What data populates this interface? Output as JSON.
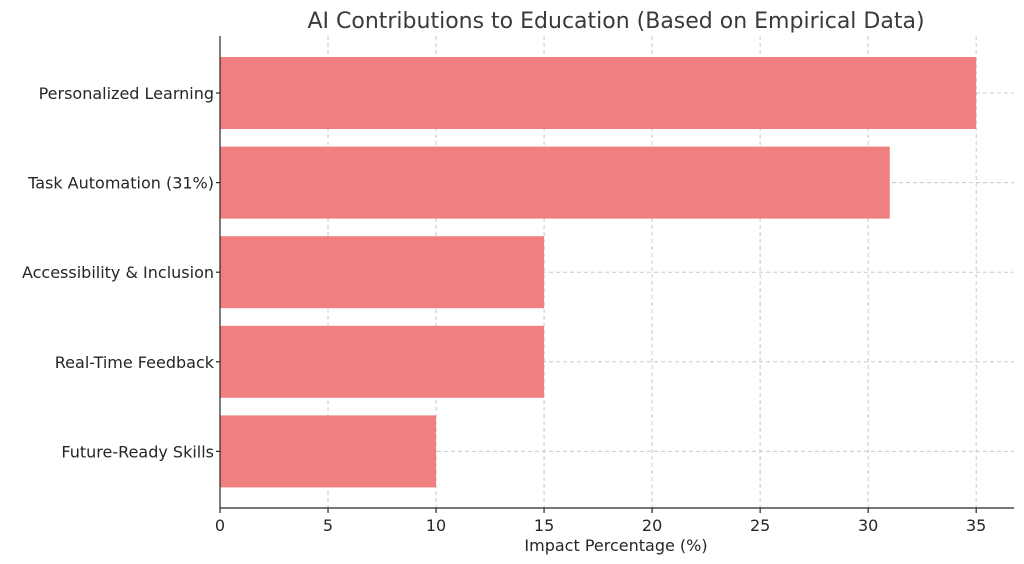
{
  "chart_data": {
    "type": "bar",
    "orientation": "horizontal",
    "title": "AI Contributions to Education (Based on Empirical Data)",
    "xlabel": "Impact Percentage (%)",
    "ylabel": "",
    "categories": [
      "Personalized Learning",
      "Task Automation (31%)",
      "Accessibility & Inclusion",
      "Real-Time Feedback",
      "Future-Ready Skills"
    ],
    "values": [
      35,
      31,
      15,
      15,
      10
    ],
    "xlim": [
      0,
      36.75
    ],
    "xticks": [
      "0",
      "5",
      "10",
      "15",
      "20",
      "25",
      "30",
      "35"
    ],
    "grid": true,
    "bar_color": "#f08080"
  }
}
